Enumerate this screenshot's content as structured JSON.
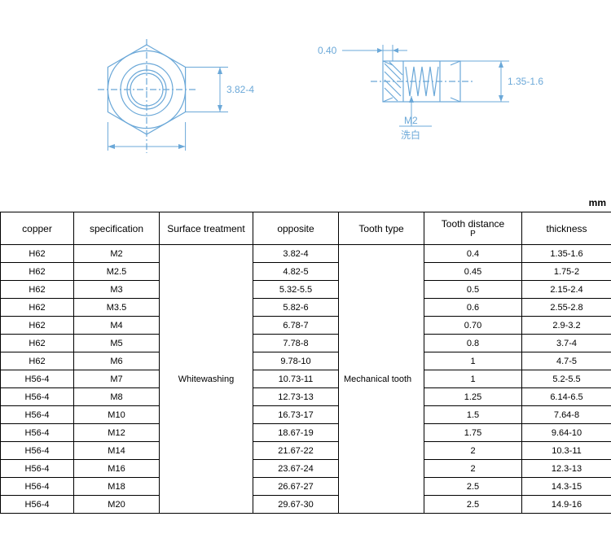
{
  "diagram": {
    "hex_dim": "3.82-4",
    "chamfer": "0.40",
    "thickness_dim": "1.35-1.6",
    "thread_label": "M2",
    "wash_label": "洗白",
    "line_color": "#6ba8d8"
  },
  "unit_label": "mm",
  "table": {
    "headers": {
      "copper": "copper",
      "spec": "specification",
      "surface": "Surface treatment",
      "opposite": "opposite",
      "tooth_type": "Tooth type",
      "tooth_distance": "Tooth distance",
      "tooth_distance_sub": "P",
      "thickness": "thickness"
    },
    "surface_value": "Whitewashing",
    "tooth_type_value": "Mechanical tooth",
    "rows": [
      {
        "copper": "H62",
        "spec": "M2",
        "opposite": "3.82-4",
        "p": "0.4",
        "thk": "1.35-1.6"
      },
      {
        "copper": "H62",
        "spec": "M2.5",
        "opposite": "4.82-5",
        "p": "0.45",
        "thk": "1.75-2"
      },
      {
        "copper": "H62",
        "spec": "M3",
        "opposite": "5.32-5.5",
        "p": "0.5",
        "thk": "2.15-2.4"
      },
      {
        "copper": "H62",
        "spec": "M3.5",
        "opposite": "5.82-6",
        "p": "0.6",
        "thk": "2.55-2.8"
      },
      {
        "copper": "H62",
        "spec": "M4",
        "opposite": "6.78-7",
        "p": "0.70",
        "thk": "2.9-3.2"
      },
      {
        "copper": "H62",
        "spec": "M5",
        "opposite": "7.78-8",
        "p": "0.8",
        "thk": "3.7-4"
      },
      {
        "copper": "H62",
        "spec": "M6",
        "opposite": "9.78-10",
        "p": "1",
        "thk": "4.7-5"
      },
      {
        "copper": "H56-4",
        "spec": "M7",
        "opposite": "10.73-11",
        "p": "1",
        "thk": "5.2-5.5"
      },
      {
        "copper": "H56-4",
        "spec": "M8",
        "opposite": "12.73-13",
        "p": "1.25",
        "thk": "6.14-6.5"
      },
      {
        "copper": "H56-4",
        "spec": "M10",
        "opposite": "16.73-17",
        "p": "1.5",
        "thk": "7.64-8"
      },
      {
        "copper": "H56-4",
        "spec": "M12",
        "opposite": "18.67-19",
        "p": "1.75",
        "thk": "9.64-10"
      },
      {
        "copper": "H56-4",
        "spec": "M14",
        "opposite": "21.67-22",
        "p": "2",
        "thk": "10.3-11"
      },
      {
        "copper": "H56-4",
        "spec": "M16",
        "opposite": "23.67-24",
        "p": "2",
        "thk": "12.3-13"
      },
      {
        "copper": "H56-4",
        "spec": "M18",
        "opposite": "26.67-27",
        "p": "2.5",
        "thk": "14.3-15"
      },
      {
        "copper": "H56-4",
        "spec": "M20",
        "opposite": "29.67-30",
        "p": "2.5",
        "thk": "14.9-16"
      }
    ]
  }
}
